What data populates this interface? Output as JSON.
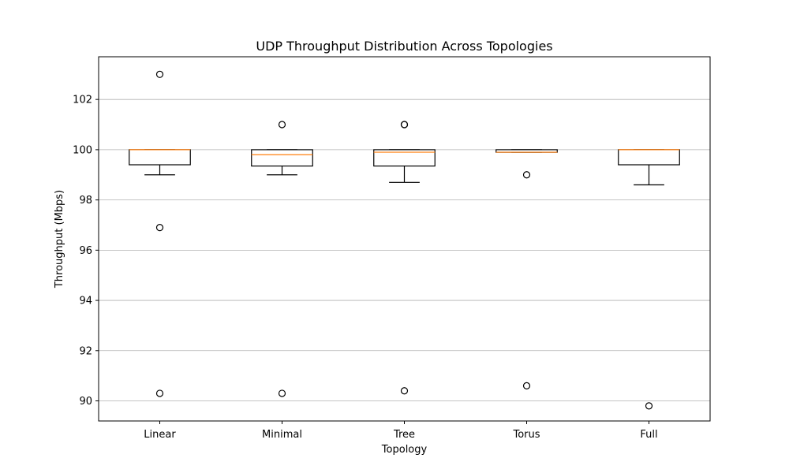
{
  "chart_data": {
    "type": "box",
    "title": "UDP Throughput Distribution Across Topologies",
    "xlabel": "Topology",
    "ylabel": "Throughput (Mbps)",
    "categories": [
      "Linear",
      "Minimal",
      "Tree",
      "Torus",
      "Full"
    ],
    "ylim": [
      89.2,
      103.7
    ],
    "yticks": [
      90,
      92,
      94,
      96,
      98,
      100,
      102
    ],
    "grid": "horizontal",
    "boxes": [
      {
        "category": "Linear",
        "whisker_low": 99.0,
        "q1": 99.4,
        "median": 100.0,
        "q3": 100.0,
        "whisker_high": 100.0,
        "outliers": [
          103.0,
          96.9,
          90.3
        ]
      },
      {
        "category": "Minimal",
        "whisker_low": 99.0,
        "q1": 99.35,
        "median": 99.8,
        "q3": 100.0,
        "whisker_high": 100.0,
        "outliers": [
          101.0,
          90.3
        ]
      },
      {
        "category": "Tree",
        "whisker_low": 98.7,
        "q1": 99.35,
        "median": 99.9,
        "q3": 100.0,
        "whisker_high": 100.0,
        "outliers": [
          101.0,
          101.0,
          90.4
        ]
      },
      {
        "category": "Torus",
        "whisker_low": 99.9,
        "q1": 99.9,
        "median": 99.9,
        "q3": 100.0,
        "whisker_high": 100.0,
        "outliers": [
          99.0,
          90.6
        ]
      },
      {
        "category": "Full",
        "whisker_low": 98.6,
        "q1": 99.4,
        "median": 100.0,
        "q3": 100.0,
        "whisker_high": 100.0,
        "outliers": [
          89.8
        ]
      }
    ],
    "colors": {
      "box": "#000000",
      "median": "#ff7f0e",
      "grid": "#b0b0b0"
    }
  }
}
